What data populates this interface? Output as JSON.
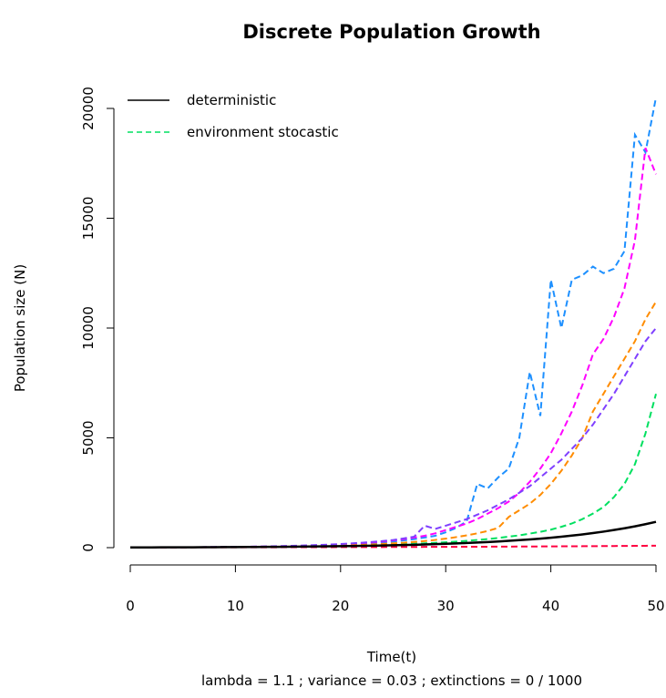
{
  "chart_data": {
    "type": "line",
    "title": "Discrete Population Growth",
    "x_label": "Time(t)",
    "y_label": "Population size (N)",
    "subtitle": "lambda =  1.1 ; variance =  0.03 ; extinctions =  0 / 1000",
    "x": [
      0,
      1,
      2,
      3,
      4,
      5,
      6,
      7,
      8,
      9,
      10,
      11,
      12,
      13,
      14,
      15,
      16,
      17,
      18,
      19,
      20,
      21,
      22,
      23,
      24,
      25,
      26,
      27,
      28,
      29,
      30,
      31,
      32,
      33,
      34,
      35,
      36,
      37,
      38,
      39,
      40,
      41,
      42,
      43,
      44,
      45,
      46,
      47,
      48,
      49,
      50
    ],
    "xlim": [
      0,
      50
    ],
    "xticks": [
      0,
      10,
      20,
      30,
      40,
      50
    ],
    "ylim": [
      0,
      20000
    ],
    "yticks": [
      0,
      5000,
      10000,
      15000,
      20000
    ],
    "legend_position": "top-left",
    "series": [
      {
        "name": "environment stocastic",
        "color": "#00e060",
        "dashed": true,
        "values": [
          10,
          11,
          12,
          14,
          15,
          17,
          18,
          21,
          23,
          26,
          29,
          32,
          35,
          39,
          43,
          48,
          53,
          59,
          65,
          72,
          80,
          90,
          100,
          112,
          125,
          140,
          155,
          175,
          195,
          220,
          245,
          275,
          310,
          350,
          390,
          440,
          500,
          560,
          640,
          720,
          820,
          950,
          1100,
          1300,
          1550,
          1850,
          2300,
          2900,
          3800,
          5200,
          7000
        ]
      },
      {
        "color": "#1e90ff",
        "dashed": true,
        "values": [
          10,
          11,
          12,
          13,
          15,
          17,
          19,
          22,
          25,
          28,
          32,
          36,
          41,
          47,
          54,
          62,
          71,
          82,
          95,
          110,
          128,
          150,
          175,
          205,
          240,
          280,
          330,
          390,
          460,
          540,
          700,
          900,
          1200,
          2900,
          2700,
          3200,
          3600,
          5000,
          8000,
          6000,
          12200,
          10000,
          12200,
          12400,
          12800,
          12500,
          12700,
          13500,
          18800,
          18000,
          20500
        ]
      },
      {
        "color": "#ff00ff",
        "dashed": true,
        "values": [
          10,
          11,
          12,
          14,
          16,
          18,
          20,
          23,
          26,
          30,
          34,
          39,
          45,
          52,
          60,
          70,
          82,
          96,
          112,
          130,
          150,
          175,
          205,
          240,
          280,
          330,
          390,
          460,
          540,
          650,
          800,
          950,
          1100,
          1300,
          1550,
          1800,
          2100,
          2500,
          3000,
          3600,
          4300,
          5200,
          6200,
          7400,
          8800,
          9500,
          10500,
          11800,
          14000,
          18200,
          17000
        ]
      },
      {
        "color": "#ff8c00",
        "dashed": true,
        "values": [
          10,
          11,
          12,
          13,
          14,
          16,
          18,
          20,
          22,
          25,
          28,
          31,
          35,
          39,
          44,
          50,
          57,
          64,
          73,
          83,
          95,
          110,
          125,
          145,
          170,
          195,
          225,
          260,
          300,
          350,
          410,
          480,
          560,
          650,
          760,
          900,
          1400,
          1700,
          2000,
          2400,
          2900,
          3500,
          4200,
          5000,
          6200,
          7000,
          7800,
          8600,
          9400,
          10400,
          11200
        ]
      },
      {
        "color": "#8040ff",
        "dashed": true,
        "values": [
          10,
          11,
          12,
          14,
          16,
          18,
          21,
          24,
          28,
          32,
          37,
          43,
          50,
          58,
          67,
          78,
          90,
          105,
          122,
          142,
          165,
          192,
          224,
          260,
          300,
          350,
          420,
          500,
          1000,
          850,
          1000,
          1150,
          1300,
          1500,
          1700,
          1950,
          2200,
          2500,
          2800,
          3200,
          3600,
          4000,
          4500,
          5000,
          5600,
          6300,
          7000,
          7800,
          8600,
          9400,
          10000
        ]
      },
      {
        "color": "#ff0040",
        "dashed": true,
        "values": [
          10,
          10,
          11,
          11,
          12,
          12,
          13,
          13,
          14,
          15,
          15,
          16,
          17,
          17,
          18,
          19,
          20,
          21,
          22,
          23,
          24,
          25,
          26,
          27,
          28,
          30,
          31,
          32,
          34,
          35,
          37,
          38,
          40,
          42,
          44,
          46,
          48,
          50,
          52,
          55,
          57,
          60,
          62,
          65,
          68,
          71,
          74,
          78,
          81,
          85,
          89
        ]
      },
      {
        "name": "deterministic",
        "color": "#000000",
        "dashed": false,
        "values": [
          10,
          11,
          12,
          13,
          15,
          16,
          18,
          19,
          21,
          24,
          26,
          29,
          31,
          35,
          38,
          42,
          46,
          51,
          56,
          61,
          67,
          74,
          81,
          90,
          98,
          108,
          119,
          131,
          144,
          159,
          174,
          192,
          211,
          232,
          256,
          281,
          309,
          340,
          374,
          411,
          453,
          498,
          548,
          602,
          663,
          729,
          802,
          882,
          970,
          1067,
          1174
        ]
      }
    ]
  }
}
